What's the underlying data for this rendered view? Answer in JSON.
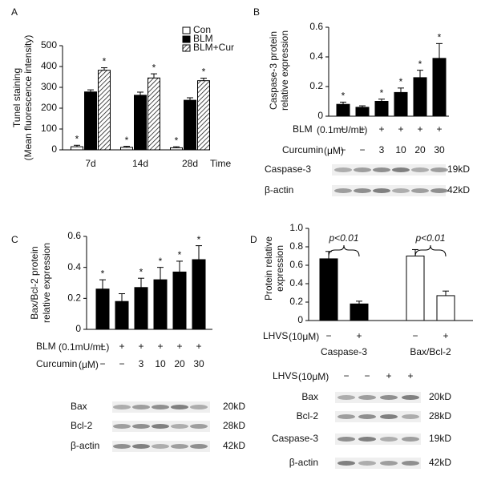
{
  "chart_data": [
    {
      "panel": "A",
      "type": "bar",
      "y_label": [
        "Tunel staining"
      ],
      "y_sublabel": "(Mean fluorescence intensity)",
      "x_label": "Time",
      "categories": [
        "7d",
        "14d",
        "28d"
      ],
      "series": [
        {
          "name": "Con",
          "color": "#ffffff",
          "values": [
            15,
            12,
            10
          ],
          "errors": [
            7,
            5,
            5
          ],
          "significant": [
            true,
            true,
            true
          ]
        },
        {
          "name": "BLM",
          "color": "#000000",
          "values": [
            278,
            262,
            238
          ],
          "errors": [
            10,
            15,
            12
          ]
        },
        {
          "name": "BLM+Cur",
          "color": "#ffffff",
          "hatch": true,
          "values": [
            382,
            345,
            332
          ],
          "errors": [
            12,
            20,
            12
          ],
          "significant": [
            true,
            true,
            true
          ]
        }
      ],
      "significance_label": "*",
      "ylim": [
        0,
        500
      ],
      "yticks": [
        0,
        100,
        200,
        300,
        400,
        500
      ],
      "legend": "top-right"
    },
    {
      "panel": "B",
      "type": "bar",
      "y_label": [
        "Caspase-3 protein",
        "relative expression"
      ],
      "color": "#000000",
      "values": [
        0.08,
        0.06,
        0.1,
        0.16,
        0.26,
        0.39
      ],
      "errors": [
        0.015,
        0.01,
        0.015,
        0.03,
        0.05,
        0.1
      ],
      "significant": [
        true,
        false,
        true,
        true,
        true,
        true
      ],
      "significance_label": "*",
      "ylim": [
        0,
        0.6
      ],
      "yticks": [
        0,
        0.2,
        0.4,
        0.6
      ],
      "treatments": [
        {
          "name": "BLM",
          "unit": "(0.1mU/mL)",
          "levels": [
            "−",
            "+",
            "+",
            "+",
            "+",
            "+"
          ]
        },
        {
          "name": "Curcumin",
          "unit": "(μM)",
          "levels": [
            "−",
            "−",
            "3",
            "10",
            "20",
            "30"
          ]
        }
      ],
      "blots": [
        {
          "name": "Caspase-3",
          "size": "19kD"
        },
        {
          "name": "β-actin",
          "size": "42kD"
        }
      ]
    },
    {
      "panel": "C",
      "type": "bar",
      "y_label": [
        "Bax/Bcl-2 protein",
        "relative expression"
      ],
      "color": "#000000",
      "values": [
        0.26,
        0.18,
        0.27,
        0.32,
        0.37,
        0.45
      ],
      "errors": [
        0.06,
        0.05,
        0.06,
        0.08,
        0.07,
        0.09
      ],
      "significant": [
        true,
        false,
        true,
        true,
        true,
        true
      ],
      "significance_label": "*",
      "ylim": [
        0,
        0.6
      ],
      "yticks": [
        0,
        0.2,
        0.4,
        0.6
      ],
      "treatments": [
        {
          "name": "BLM",
          "unit": "(0.1mU/mL)",
          "levels": [
            "−",
            "+",
            "+",
            "+",
            "+",
            "+"
          ]
        },
        {
          "name": "Curcumin",
          "unit": "(μM)",
          "levels": [
            "−",
            "−",
            "3",
            "10",
            "20",
            "30"
          ]
        }
      ],
      "blots": [
        {
          "name": "Bax",
          "size": "20kD"
        },
        {
          "name": "Bcl-2",
          "size": "28kD"
        },
        {
          "name": "β-actin",
          "size": "42kD"
        }
      ]
    },
    {
      "panel": "D",
      "type": "bar",
      "y_label": [
        "Protein relative",
        "expression"
      ],
      "values": [
        0.67,
        0.18,
        0.7,
        0.27
      ],
      "errors": [
        0.08,
        0.03,
        0.07,
        0.05
      ],
      "colors": [
        "#000000",
        "#000000",
        "#ffffff",
        "#ffffff"
      ],
      "ylim": [
        0,
        1
      ],
      "yticks": [
        0,
        0.2,
        0.4,
        0.6,
        0.8,
        {
          "value": 1,
          "label": "1.0"
        }
      ],
      "treatments": [
        {
          "name": "LHVS",
          "unit": "(10μM)",
          "levels": [
            "−",
            "+",
            "−",
            "+"
          ]
        }
      ],
      "groups": [
        {
          "label": "Caspase-3",
          "annotation": "p<0.01"
        },
        {
          "label": "Bax/Bcl-2",
          "annotation": "p<0.01"
        }
      ],
      "blot_treatments": [
        {
          "name": "LHVS",
          "unit": "(10μM)",
          "levels": [
            "−",
            "−",
            "+",
            "+"
          ]
        }
      ],
      "blots": [
        {
          "name": "Bax",
          "size": "20kD"
        },
        {
          "name": "Bcl-2",
          "size": "28kD"
        },
        {
          "name": "Caspase-3",
          "size": "19kD"
        },
        {
          "name": "β-actin",
          "size": "42kD"
        }
      ]
    }
  ]
}
